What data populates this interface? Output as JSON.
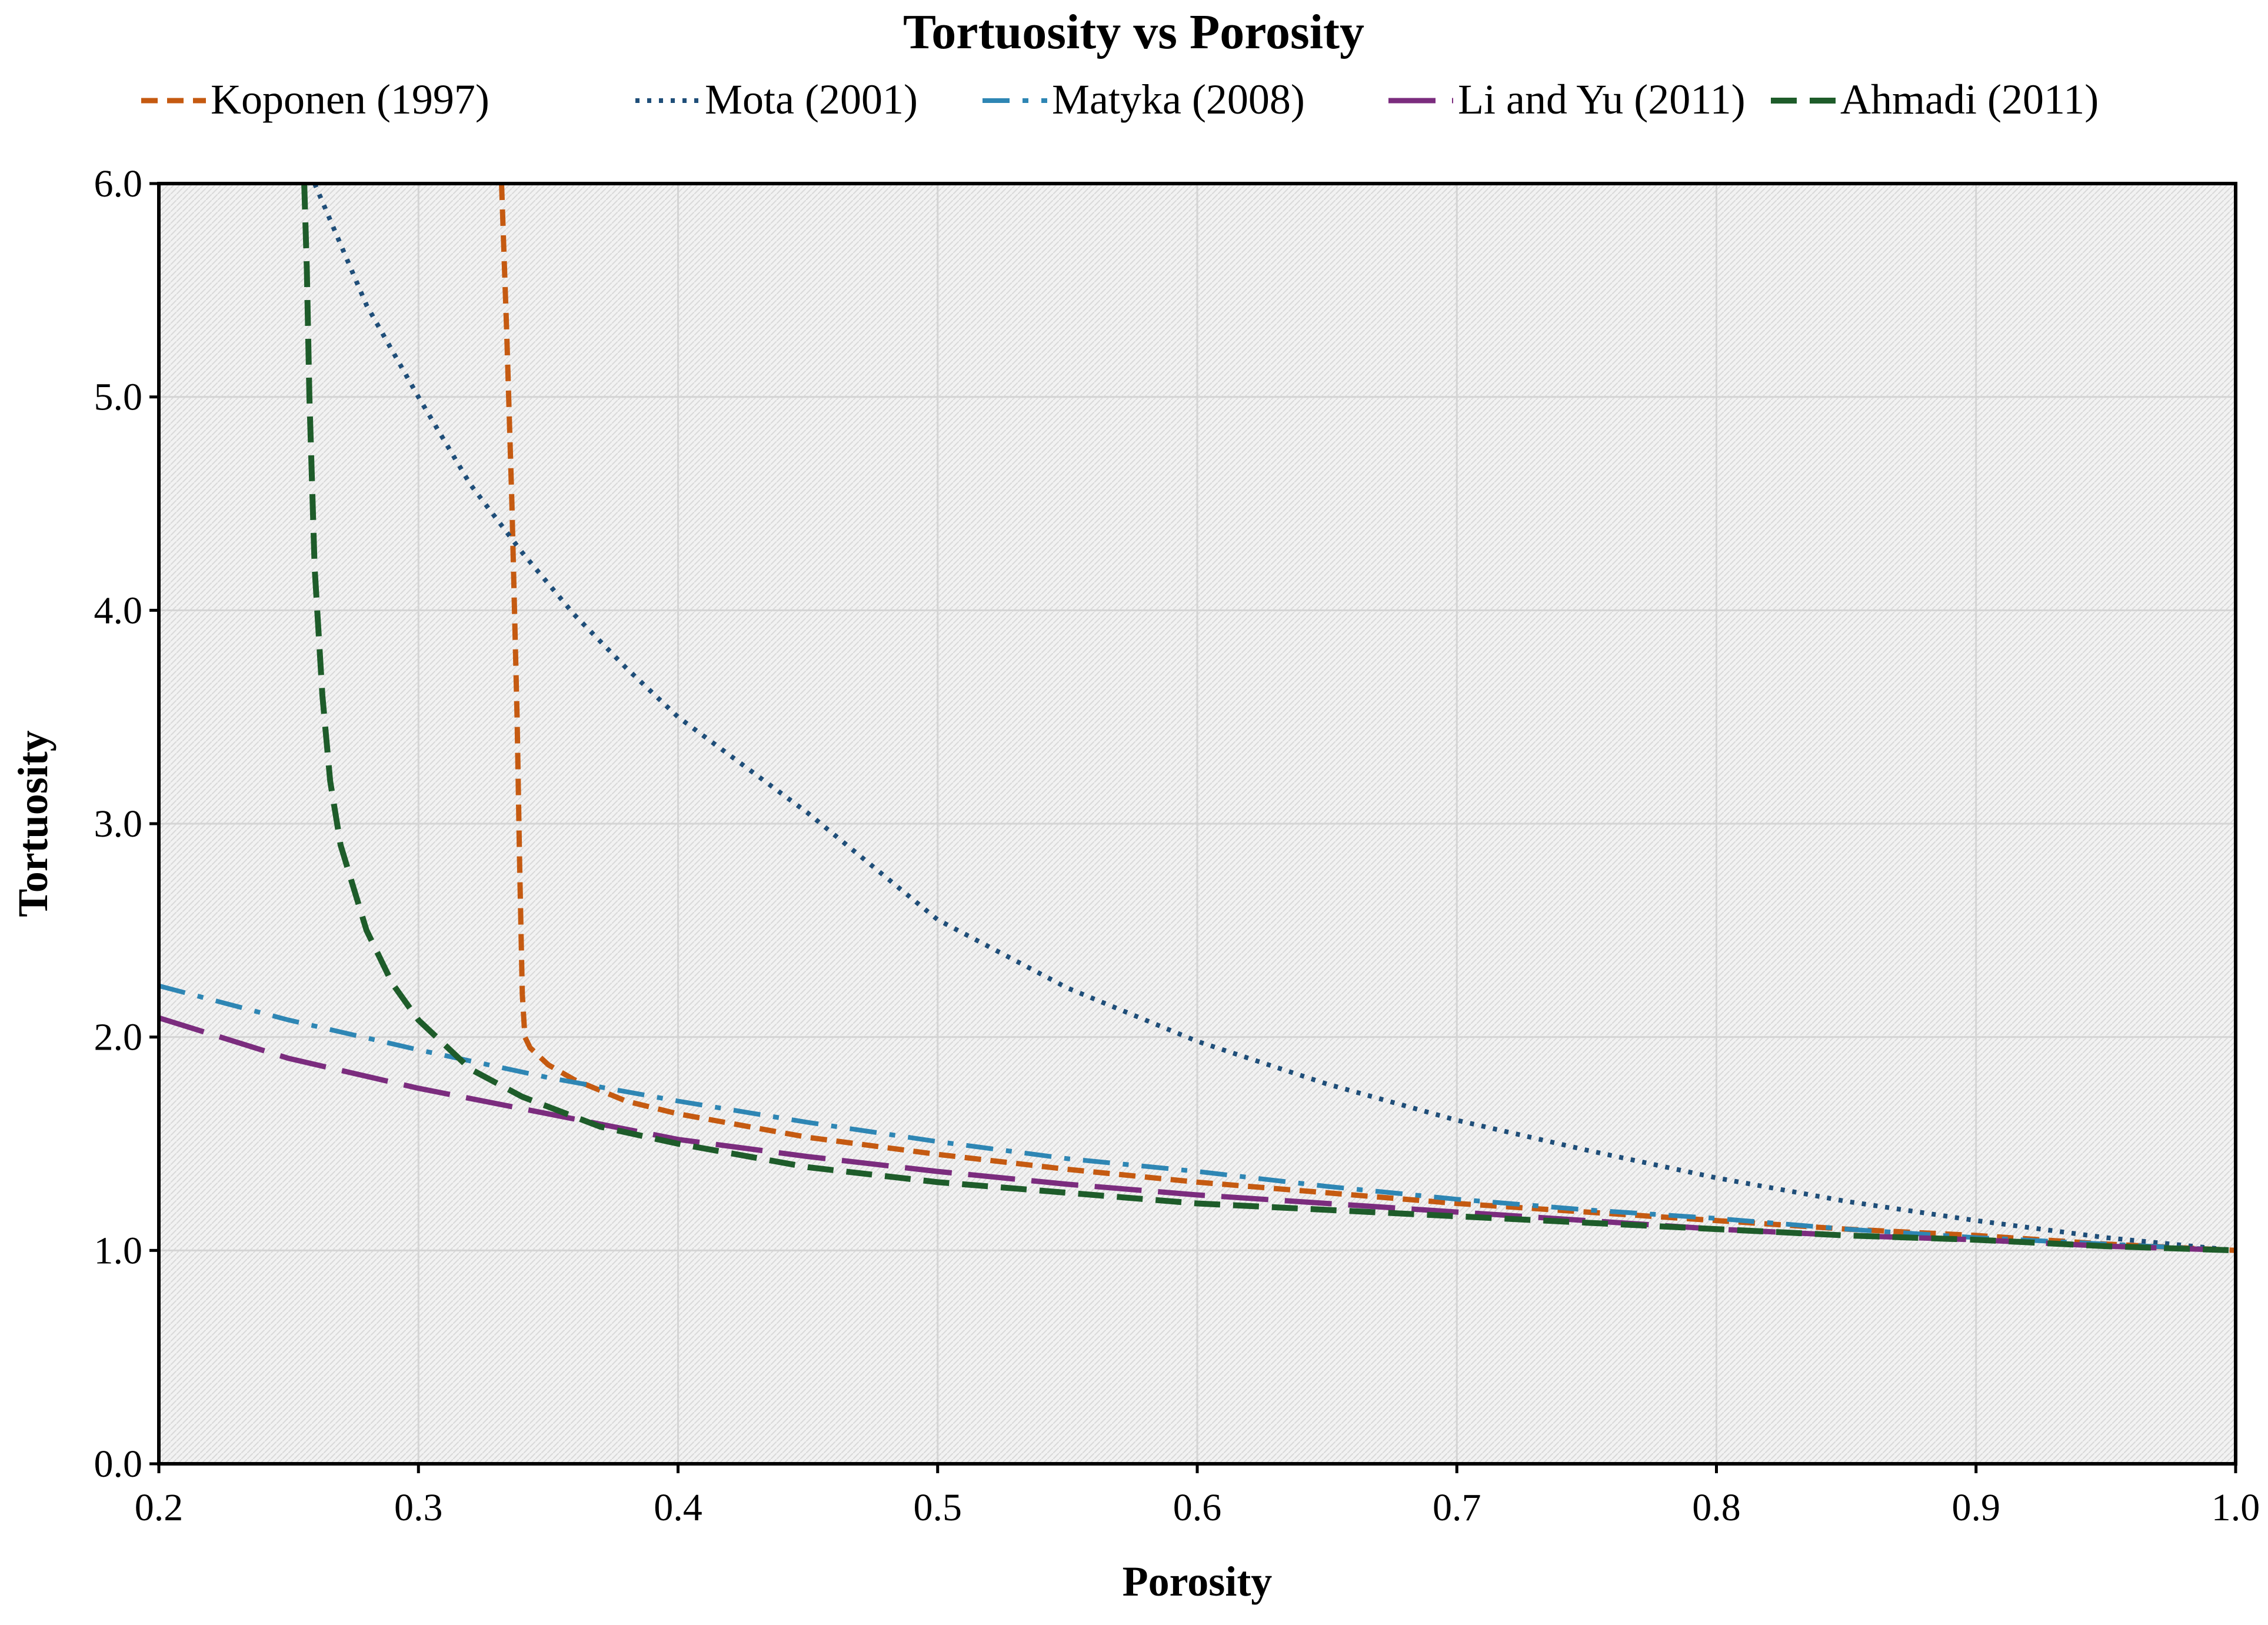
{
  "chart_data": {
    "type": "line",
    "title": "Tortuosity vs Porosity",
    "xlabel": "Porosity",
    "ylabel": "Tortuosity",
    "xlim": [
      0.2,
      1.0
    ],
    "ylim": [
      0.0,
      6.0
    ],
    "x_ticks": [
      0.2,
      0.3,
      0.4,
      0.5,
      0.6,
      0.7,
      0.8,
      0.9,
      1.0
    ],
    "y_ticks": [
      0.0,
      1.0,
      2.0,
      3.0,
      4.0,
      5.0,
      6.0
    ],
    "x_tick_labels": [
      "0.2",
      "0.3",
      "0.4",
      "0.5",
      "0.6",
      "0.7",
      "0.8",
      "0.9",
      "1.0"
    ],
    "y_tick_labels": [
      "0.0",
      "1.0",
      "2.0",
      "3.0",
      "4.0",
      "5.0",
      "6.0"
    ],
    "grid": true,
    "legend_position": "top",
    "series": [
      {
        "name": "Koponen (1997)",
        "color": "#C55A11",
        "dash": "short-dash",
        "x": [
          0.332,
          0.334,
          0.336,
          0.338,
          0.339,
          0.34,
          0.341,
          0.343,
          0.35,
          0.36,
          0.38,
          0.4,
          0.45,
          0.5,
          0.55,
          0.6,
          0.65,
          0.7,
          0.75,
          0.8,
          0.85,
          0.9,
          0.95,
          1.0
        ],
        "y": [
          6.0,
          5.3,
          4.5,
          3.5,
          2.8,
          2.2,
          2.0,
          1.95,
          1.87,
          1.8,
          1.7,
          1.64,
          1.53,
          1.45,
          1.38,
          1.32,
          1.27,
          1.22,
          1.18,
          1.14,
          1.1,
          1.07,
          1.03,
          1.0
        ]
      },
      {
        "name": "Mota (2001)",
        "color": "#1F4E79",
        "dash": "dotted",
        "x": [
          0.26,
          0.28,
          0.3,
          0.32,
          0.34,
          0.36,
          0.38,
          0.4,
          0.45,
          0.5,
          0.55,
          0.6,
          0.65,
          0.7,
          0.75,
          0.8,
          0.85,
          0.9,
          0.95,
          1.0
        ],
        "y": [
          6.0,
          5.43,
          5.0,
          4.59,
          4.27,
          3.98,
          3.73,
          3.5,
          3.05,
          2.55,
          2.23,
          1.98,
          1.78,
          1.61,
          1.47,
          1.34,
          1.23,
          1.14,
          1.06,
          1.0
        ]
      },
      {
        "name": "Matyka (2008)",
        "color": "#2E86B4",
        "dash": "dash-dot",
        "x": [
          0.2,
          0.25,
          0.3,
          0.35,
          0.4,
          0.45,
          0.5,
          0.55,
          0.6,
          0.65,
          0.7,
          0.75,
          0.8,
          0.85,
          0.9,
          0.95,
          1.0
        ],
        "y": [
          2.24,
          2.08,
          1.94,
          1.81,
          1.7,
          1.6,
          1.51,
          1.43,
          1.37,
          1.3,
          1.24,
          1.19,
          1.15,
          1.1,
          1.06,
          1.03,
          1.0
        ]
      },
      {
        "name": "Li and Yu (2011)",
        "color": "#7B2C7E",
        "dash": "long-dash",
        "x": [
          0.2,
          0.25,
          0.3,
          0.35,
          0.4,
          0.45,
          0.5,
          0.55,
          0.6,
          0.65,
          0.7,
          0.75,
          0.8,
          0.85,
          0.9,
          0.95,
          1.0
        ],
        "y": [
          2.09,
          1.9,
          1.76,
          1.64,
          1.52,
          1.44,
          1.37,
          1.31,
          1.26,
          1.22,
          1.18,
          1.14,
          1.1,
          1.07,
          1.05,
          1.02,
          1.0
        ]
      },
      {
        "name": "Ahmadi (2011)",
        "color": "#1E5C2A",
        "dash": "dash",
        "x": [
          0.256,
          0.257,
          0.258,
          0.26,
          0.263,
          0.266,
          0.27,
          0.275,
          0.28,
          0.29,
          0.3,
          0.32,
          0.34,
          0.37,
          0.4,
          0.45,
          0.5,
          0.55,
          0.6,
          0.65,
          0.7,
          0.75,
          0.8,
          0.85,
          0.9,
          0.95,
          1.0
        ],
        "y": [
          6.0,
          5.6,
          5.0,
          4.2,
          3.6,
          3.2,
          2.9,
          2.7,
          2.5,
          2.25,
          2.08,
          1.85,
          1.72,
          1.58,
          1.5,
          1.39,
          1.32,
          1.27,
          1.22,
          1.19,
          1.16,
          1.13,
          1.1,
          1.07,
          1.05,
          1.02,
          1.0
        ]
      }
    ]
  }
}
